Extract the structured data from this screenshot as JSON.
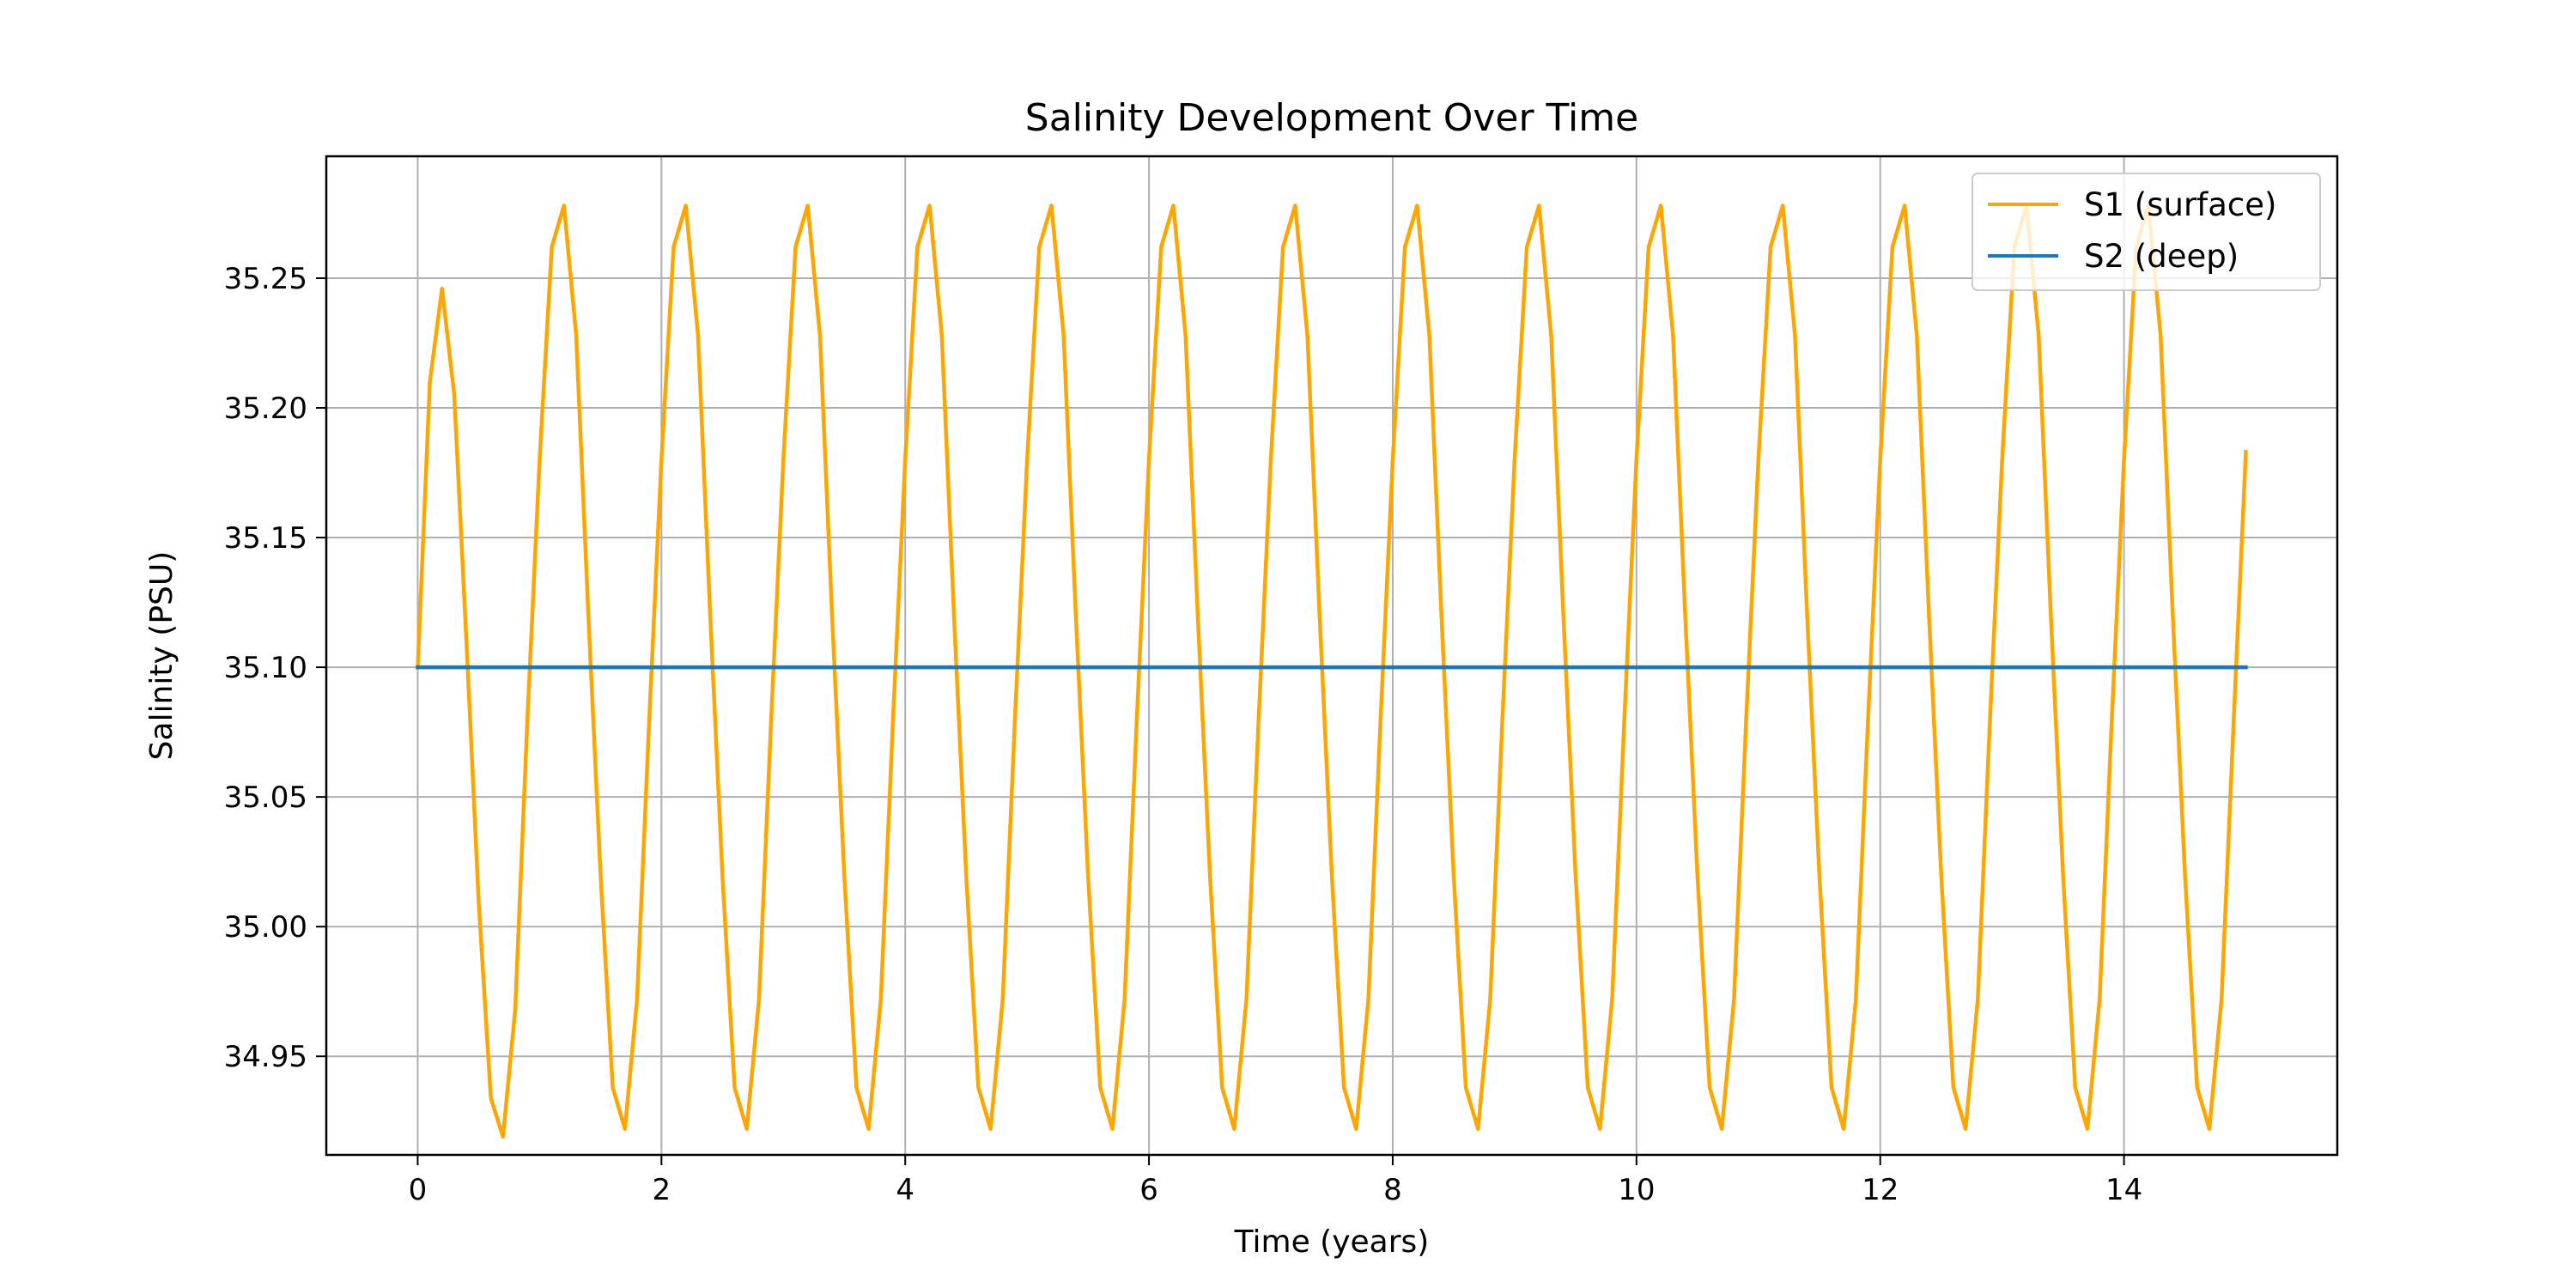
{
  "chart_data": {
    "type": "line",
    "title": "Salinity Development Over Time",
    "xlabel": "Time (years)",
    "ylabel": "Salinity (PSU)",
    "xlim": [
      -0.75,
      15.75
    ],
    "ylim": [
      34.912,
      35.297
    ],
    "xticks": [
      0,
      2,
      4,
      6,
      8,
      10,
      12,
      14
    ],
    "yticks": [
      34.95,
      35.0,
      35.05,
      35.1,
      35.15,
      35.2,
      35.25
    ],
    "ytick_labels": [
      "34.95",
      "35.00",
      "35.05",
      "35.10",
      "35.15",
      "35.20",
      "35.25"
    ],
    "grid": true,
    "legend_position": "top-right",
    "series": [
      {
        "name": "S1 (surface)",
        "color": "#FFA500",
        "x": [
          0,
          0.1,
          0.2,
          0.3,
          0.4,
          0.5,
          0.6,
          0.7,
          0.8,
          0.9,
          1.0,
          1.1,
          1.2,
          1.3,
          1.4,
          1.5,
          1.6,
          1.7,
          1.8,
          1.9,
          2.0,
          2.1,
          2.2,
          2.3,
          2.4,
          2.5,
          2.6,
          2.7,
          2.8,
          2.9,
          3.0,
          3.1,
          3.2,
          3.3,
          3.4,
          3.5,
          3.6,
          3.7,
          3.8,
          3.9,
          4.0,
          4.1,
          4.2,
          4.3,
          4.4,
          4.5,
          4.6,
          4.7,
          4.8,
          4.9,
          5.0,
          5.1,
          5.2,
          5.3,
          5.4,
          5.5,
          5.6,
          5.7,
          5.8,
          5.9,
          6.0,
          6.1,
          6.2,
          6.3,
          6.4,
          6.5,
          6.6,
          6.7,
          6.8,
          6.9,
          7.0,
          7.1,
          7.2,
          7.3,
          7.4,
          7.5,
          7.6,
          7.7,
          7.8,
          7.9,
          8.0,
          8.1,
          8.2,
          8.3,
          8.4,
          8.5,
          8.6,
          8.7,
          8.8,
          8.9,
          9.0,
          9.1,
          9.2,
          9.3,
          9.4,
          9.5,
          9.6,
          9.7,
          9.8,
          9.9,
          10.0,
          10.1,
          10.2,
          10.3,
          10.4,
          10.5,
          10.6,
          10.7,
          10.8,
          10.9,
          11.0,
          11.1,
          11.2,
          11.3,
          11.4,
          11.5,
          11.6,
          11.7,
          11.8,
          11.9,
          12.0,
          12.1,
          12.2,
          12.3,
          12.4,
          12.5,
          12.6,
          12.7,
          12.8,
          12.9,
          13.0,
          13.1,
          13.2,
          13.3,
          13.4,
          13.5,
          13.6,
          13.7,
          13.8,
          13.9,
          14.0,
          14.1,
          14.2,
          14.3,
          14.4,
          14.5,
          14.6,
          14.7,
          14.8,
          14.9,
          15.0
        ],
        "y": [
          35.1,
          35.21,
          35.246,
          35.205,
          35.11,
          35.01,
          34.934,
          34.919,
          34.968,
          35.08,
          35.18,
          35.262,
          35.278,
          35.228,
          35.12,
          35.02,
          34.938,
          34.922,
          34.972,
          35.08,
          35.18,
          35.262,
          35.278,
          35.228,
          35.12,
          35.02,
          34.938,
          34.922,
          34.972,
          35.08,
          35.18,
          35.262,
          35.278,
          35.228,
          35.12,
          35.02,
          34.938,
          34.922,
          34.972,
          35.08,
          35.18,
          35.262,
          35.278,
          35.228,
          35.12,
          35.02,
          34.938,
          34.922,
          34.972,
          35.08,
          35.18,
          35.262,
          35.278,
          35.228,
          35.12,
          35.02,
          34.938,
          34.922,
          34.972,
          35.08,
          35.18,
          35.262,
          35.278,
          35.228,
          35.12,
          35.02,
          34.938,
          34.922,
          34.972,
          35.08,
          35.18,
          35.262,
          35.278,
          35.228,
          35.12,
          35.02,
          34.938,
          34.922,
          34.972,
          35.08,
          35.18,
          35.262,
          35.278,
          35.228,
          35.12,
          35.02,
          34.938,
          34.922,
          34.972,
          35.08,
          35.18,
          35.262,
          35.278,
          35.228,
          35.12,
          35.02,
          34.938,
          34.922,
          34.972,
          35.08,
          35.18,
          35.262,
          35.278,
          35.228,
          35.12,
          35.02,
          34.938,
          34.922,
          34.972,
          35.08,
          35.18,
          35.262,
          35.278,
          35.228,
          35.12,
          35.02,
          34.938,
          34.922,
          34.972,
          35.08,
          35.18,
          35.262,
          35.278,
          35.228,
          35.12,
          35.02,
          34.938,
          34.922,
          34.972,
          35.08,
          35.18,
          35.262,
          35.278,
          35.228,
          35.12,
          35.02,
          34.938,
          34.922,
          34.972,
          35.08,
          35.18,
          35.262,
          35.278,
          35.228,
          35.12,
          35.02,
          34.938,
          34.922,
          34.972,
          35.08,
          35.183
        ]
      },
      {
        "name": "S2 (deep)",
        "color": "#1F77B4",
        "x": [
          0,
          15
        ],
        "y": [
          35.1,
          35.1
        ]
      }
    ]
  }
}
